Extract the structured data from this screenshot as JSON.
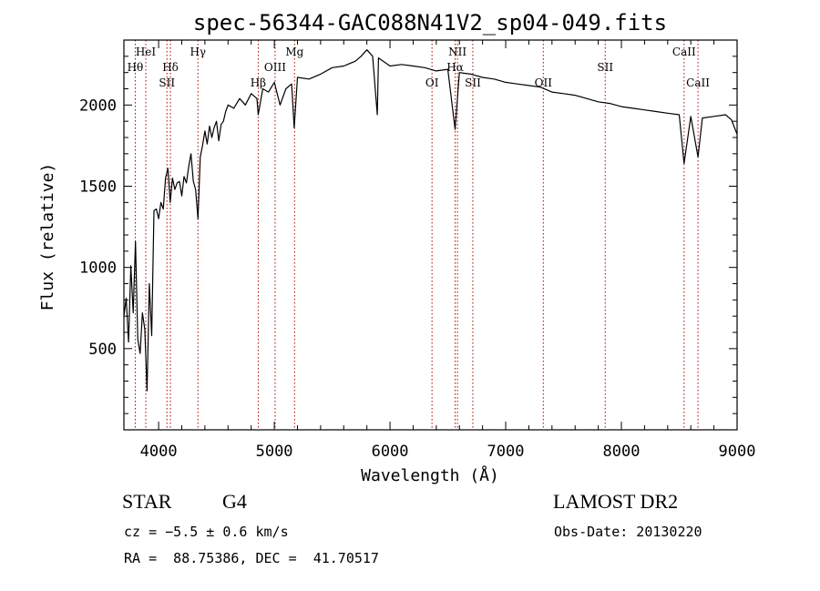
{
  "chart_data": {
    "type": "line",
    "title": "spec-56344-GAC088N41V2_sp04-049.fits",
    "xlabel": "Wavelength (Å)",
    "ylabel": "Flux (relative)",
    "xlim": [
      3700,
      9000
    ],
    "ylim": [
      0,
      2400
    ],
    "x_ticks": [
      4000,
      5000,
      6000,
      7000,
      8000,
      9000
    ],
    "y_ticks": [
      500,
      1000,
      1500,
      2000
    ],
    "grid": false,
    "series": [
      {
        "values_xy": [
          [
            3700,
            700
          ],
          [
            3720,
            810
          ],
          [
            3740,
            540
          ],
          [
            3760,
            1010
          ],
          [
            3780,
            720
          ],
          [
            3800,
            1160
          ],
          [
            3820,
            560
          ],
          [
            3840,
            470
          ],
          [
            3860,
            720
          ],
          [
            3880,
            620
          ],
          [
            3900,
            240
          ],
          [
            3920,
            900
          ],
          [
            3940,
            580
          ],
          [
            3960,
            1350
          ],
          [
            3980,
            1360
          ],
          [
            4000,
            1300
          ],
          [
            4020,
            1400
          ],
          [
            4040,
            1360
          ],
          [
            4060,
            1550
          ],
          [
            4080,
            1610
          ],
          [
            4100,
            1400
          ],
          [
            4120,
            1550
          ],
          [
            4140,
            1480
          ],
          [
            4160,
            1520
          ],
          [
            4180,
            1530
          ],
          [
            4200,
            1440
          ],
          [
            4220,
            1560
          ],
          [
            4240,
            1520
          ],
          [
            4260,
            1620
          ],
          [
            4280,
            1700
          ],
          [
            4300,
            1530
          ],
          [
            4320,
            1480
          ],
          [
            4340,
            1300
          ],
          [
            4360,
            1680
          ],
          [
            4380,
            1750
          ],
          [
            4400,
            1840
          ],
          [
            4420,
            1760
          ],
          [
            4440,
            1870
          ],
          [
            4460,
            1800
          ],
          [
            4480,
            1860
          ],
          [
            4500,
            1900
          ],
          [
            4520,
            1780
          ],
          [
            4540,
            1880
          ],
          [
            4560,
            1900
          ],
          [
            4580,
            1960
          ],
          [
            4600,
            2000
          ],
          [
            4650,
            1980
          ],
          [
            4700,
            2040
          ],
          [
            4750,
            2000
          ],
          [
            4800,
            2070
          ],
          [
            4850,
            2040
          ],
          [
            4861,
            1940
          ],
          [
            4900,
            2100
          ],
          [
            4950,
            2080
          ],
          [
            5000,
            2140
          ],
          [
            5050,
            2000
          ],
          [
            5100,
            2100
          ],
          [
            5150,
            2130
          ],
          [
            5172,
            1860
          ],
          [
            5200,
            2170
          ],
          [
            5300,
            2160
          ],
          [
            5400,
            2190
          ],
          [
            5500,
            2230
          ],
          [
            5600,
            2240
          ],
          [
            5700,
            2270
          ],
          [
            5750,
            2300
          ],
          [
            5800,
            2340
          ],
          [
            5850,
            2300
          ],
          [
            5890,
            1940
          ],
          [
            5900,
            2290
          ],
          [
            6000,
            2240
          ],
          [
            6100,
            2250
          ],
          [
            6200,
            2240
          ],
          [
            6300,
            2230
          ],
          [
            6400,
            2210
          ],
          [
            6500,
            2220
          ],
          [
            6563,
            1850
          ],
          [
            6600,
            2200
          ],
          [
            6700,
            2190
          ],
          [
            6800,
            2170
          ],
          [
            6900,
            2160
          ],
          [
            7000,
            2140
          ],
          [
            7100,
            2130
          ],
          [
            7200,
            2120
          ],
          [
            7300,
            2110
          ],
          [
            7400,
            2080
          ],
          [
            7500,
            2070
          ],
          [
            7600,
            2060
          ],
          [
            7700,
            2040
          ],
          [
            7800,
            2020
          ],
          [
            7900,
            2010
          ],
          [
            8000,
            1990
          ],
          [
            8100,
            1980
          ],
          [
            8200,
            1970
          ],
          [
            8300,
            1960
          ],
          [
            8400,
            1950
          ],
          [
            8500,
            1940
          ],
          [
            8542,
            1640
          ],
          [
            8600,
            1930
          ],
          [
            8662,
            1680
          ],
          [
            8700,
            1920
          ],
          [
            8800,
            1930
          ],
          [
            8900,
            1940
          ],
          [
            8950,
            1910
          ],
          [
            9000,
            1820
          ]
        ]
      }
    ],
    "lines": [
      {
        "name": "Hθ",
        "x": 3798,
        "label_row": 2
      },
      {
        "name": "HeI",
        "x": 3889,
        "label_row": 1
      },
      {
        "name": "SII",
        "x": 4072,
        "label_row": 3
      },
      {
        "name": "Hδ",
        "x": 4102,
        "label_row": 2
      },
      {
        "name": "Hγ",
        "x": 4340,
        "label_row": 1
      },
      {
        "name": "Hβ",
        "x": 4861,
        "label_row": 3
      },
      {
        "name": "OIII",
        "x": 5007,
        "label_row": 2
      },
      {
        "name": "Mg",
        "x": 5175,
        "label_row": 1
      },
      {
        "name": "OI",
        "x": 6363,
        "label_row": 3
      },
      {
        "name": "NII",
        "x": 6583,
        "label_row": 1
      },
      {
        "name": "Hα",
        "x": 6563,
        "label_row": 2
      },
      {
        "name": "SII",
        "x": 6716,
        "label_row": 3
      },
      {
        "name": "OII",
        "x": 7325,
        "label_row": 3
      },
      {
        "name": "SII",
        "x": 7860,
        "label_row": 2
      },
      {
        "name": "CaII",
        "x": 8542,
        "label_row": 1
      },
      {
        "name": "CaII",
        "x": 8662,
        "label_row": 3
      }
    ]
  },
  "info": {
    "object_class": "STAR",
    "subclass": "G4",
    "survey": "LAMOST DR2",
    "cz": "cz = −5.5 ± 0.6 km/s",
    "obs_date": "Obs-Date: 20130220",
    "coords": "RA =  88.75386, DEC =  41.70517"
  },
  "colors": {
    "spectrum": "#000000",
    "line_markers": "#b00000",
    "axes": "#000000"
  }
}
